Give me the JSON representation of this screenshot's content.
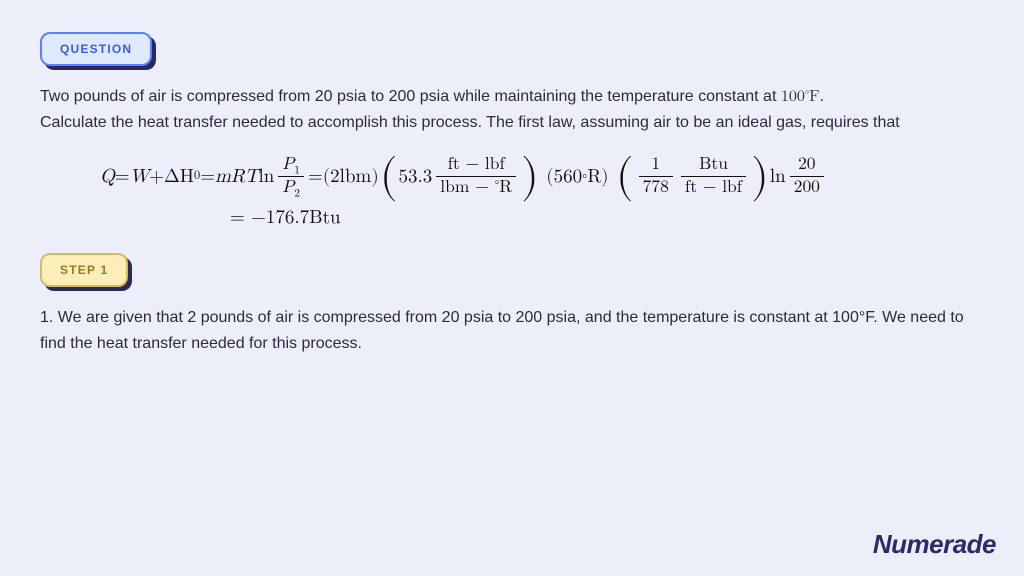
{
  "question": {
    "badge_label": "QUESTION",
    "line1a": "Two pounds of air is compressed from 20 psia to 200 psia while maintaining the temperature constant at ",
    "temp_val": "100",
    "temp_deg": "∘",
    "temp_unit": "F",
    "line1b": ".",
    "line2": "Calculate the heat transfer needed to accomplish this process. The first law, assuming air to be an ideal gas, requires that"
  },
  "equation": {
    "lhs_Q": "Q",
    "eq1": " = ",
    "W": "W",
    "plus": " + ",
    "dH": "ΔH",
    "dH_sup": "0",
    "eq2": " = ",
    "m": "m",
    "R": "R",
    "T": "T",
    "ln": " ln ",
    "P1": "P",
    "P1_sub": "1",
    "P2": "P",
    "P2_sub": "2",
    "eq3": " = ",
    "mass_val": "(2lbm)",
    "gas_const_val": "53.3",
    "gas_const_num": "ft − lbf",
    "gas_const_den_a": "lbm − ",
    "gas_const_den_deg": "∘",
    "gas_const_den_b": "R",
    "temp_val": "(560",
    "temp_deg": "∘",
    "temp_unit": " R)",
    "conv_num": "1",
    "conv_den": "778",
    "conv_unit_num": "Btu",
    "conv_unit_den": "ft − lbf",
    "ln2": " ln ",
    "ratio_num": "20",
    "ratio_den": "200",
    "result": " = −176.7Btu"
  },
  "step": {
    "badge_label": "STEP 1",
    "text": "1. We are given that 2 pounds of air is compressed from 20 psia to 200 psia, and the temperature is constant at 100°F. We need to find the heat transfer needed for this process."
  },
  "logo": "Numerade"
}
